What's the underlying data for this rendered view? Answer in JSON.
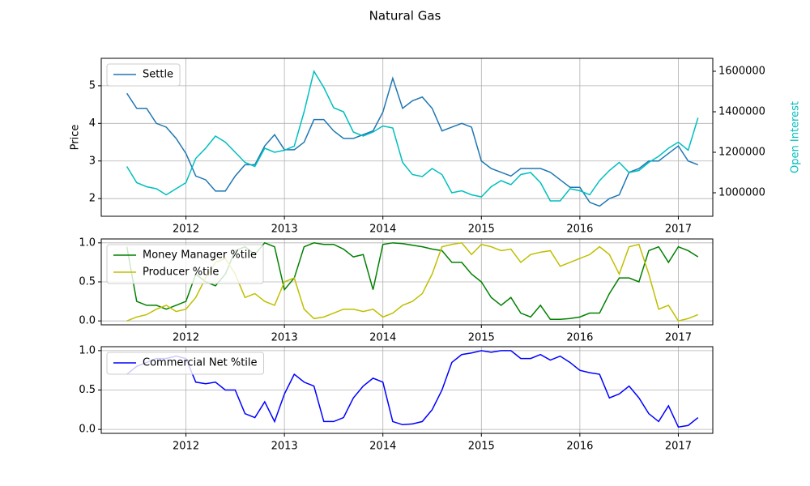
{
  "title": "Natural Gas",
  "chart_data": [
    {
      "type": "line",
      "ylabel": "Price",
      "y2label": "Open Interest",
      "grid": true,
      "legend": "upper left",
      "x": [
        2011.4,
        2011.5,
        2011.6,
        2011.7,
        2011.8,
        2011.9,
        2012.0,
        2012.1,
        2012.2,
        2012.3,
        2012.4,
        2012.5,
        2012.6,
        2012.7,
        2012.8,
        2012.9,
        2013.0,
        2013.1,
        2013.2,
        2013.3,
        2013.4,
        2013.5,
        2013.6,
        2013.7,
        2013.8,
        2013.9,
        2014.0,
        2014.1,
        2014.2,
        2014.3,
        2014.4,
        2014.5,
        2014.6,
        2014.7,
        2014.8,
        2014.9,
        2015.0,
        2015.1,
        2015.2,
        2015.3,
        2015.4,
        2015.5,
        2015.6,
        2015.7,
        2015.8,
        2015.9,
        2016.0,
        2016.1,
        2016.2,
        2016.3,
        2016.4,
        2016.5,
        2016.6,
        2016.7,
        2016.8,
        2016.9,
        2017.0,
        2017.1,
        2017.2
      ],
      "xlim": [
        2011.14,
        2017.35
      ],
      "xticks": [
        2012,
        2013,
        2014,
        2015,
        2016,
        2017
      ],
      "ylim": [
        1.53,
        5.73
      ],
      "yticks": [
        2,
        3,
        4,
        5
      ],
      "y2lim": [
        884000,
        1664000
      ],
      "y2ticks": [
        1000000,
        1200000,
        1400000,
        1600000
      ],
      "series": [
        {
          "name": "Settle",
          "color": "#1f77b4",
          "values": [
            4.8,
            4.4,
            4.4,
            4.0,
            3.9,
            3.6,
            3.2,
            2.6,
            2.5,
            2.2,
            2.2,
            2.6,
            2.9,
            2.9,
            3.4,
            3.7,
            3.3,
            3.3,
            3.5,
            4.1,
            4.1,
            3.8,
            3.6,
            3.6,
            3.7,
            3.8,
            4.3,
            5.2,
            4.4,
            4.6,
            4.7,
            4.4,
            3.8,
            3.9,
            4.0,
            3.9,
            3.0,
            2.8,
            2.7,
            2.6,
            2.8,
            2.8,
            2.8,
            2.7,
            2.5,
            2.3,
            2.3,
            1.9,
            1.8,
            2.0,
            2.1,
            2.7,
            2.8,
            3.0,
            3.0,
            3.2,
            3.4,
            3.0,
            2.9
          ]
        },
        {
          "axis": "y2",
          "color": "#00bfbf",
          "values": [
            1130000,
            1050000,
            1030000,
            1020000,
            990000,
            1020000,
            1050000,
            1170000,
            1220000,
            1280000,
            1250000,
            1200000,
            1150000,
            1130000,
            1220000,
            1200000,
            1210000,
            1230000,
            1400000,
            1600000,
            1520000,
            1420000,
            1400000,
            1300000,
            1280000,
            1300000,
            1330000,
            1320000,
            1150000,
            1090000,
            1080000,
            1120000,
            1090000,
            1000000,
            1010000,
            990000,
            980000,
            1030000,
            1060000,
            1040000,
            1090000,
            1100000,
            1050000,
            960000,
            960000,
            1020000,
            1010000,
            990000,
            1060000,
            1110000,
            1150000,
            1100000,
            1110000,
            1150000,
            1180000,
            1220000,
            1250000,
            1210000,
            1370000
          ]
        }
      ]
    },
    {
      "type": "line",
      "grid": true,
      "legend": "upper left",
      "x": [
        2011.4,
        2011.5,
        2011.6,
        2011.7,
        2011.8,
        2011.9,
        2012.0,
        2012.1,
        2012.2,
        2012.3,
        2012.4,
        2012.5,
        2012.6,
        2012.7,
        2012.8,
        2012.9,
        2013.0,
        2013.1,
        2013.2,
        2013.3,
        2013.4,
        2013.5,
        2013.6,
        2013.7,
        2013.8,
        2013.9,
        2014.0,
        2014.1,
        2014.2,
        2014.3,
        2014.4,
        2014.5,
        2014.6,
        2014.7,
        2014.8,
        2014.9,
        2015.0,
        2015.1,
        2015.2,
        2015.3,
        2015.4,
        2015.5,
        2015.6,
        2015.7,
        2015.8,
        2015.9,
        2016.0,
        2016.1,
        2016.2,
        2016.3,
        2016.4,
        2016.5,
        2016.6,
        2016.7,
        2016.8,
        2016.9,
        2017.0,
        2017.1,
        2017.2
      ],
      "xlim": [
        2011.14,
        2017.35
      ],
      "xticks": [
        2012,
        2013,
        2014,
        2015,
        2016,
        2017
      ],
      "ylim": [
        -0.05,
        1.05
      ],
      "yticks": [
        {
          "value": 0,
          "label": "0.0"
        },
        {
          "value": 0.5,
          "label": "0.5"
        },
        {
          "value": 1,
          "label": "1.0"
        }
      ],
      "series": [
        {
          "name": "Money Manager %tile",
          "color": "#008000",
          "values": [
            0.95,
            0.25,
            0.2,
            0.2,
            0.15,
            0.2,
            0.25,
            0.6,
            0.5,
            0.45,
            0.6,
            0.9,
            0.95,
            0.85,
            1.0,
            0.95,
            0.4,
            0.55,
            0.95,
            1.0,
            0.98,
            0.98,
            0.92,
            0.82,
            0.85,
            0.4,
            0.98,
            1.0,
            0.99,
            0.97,
            0.95,
            0.92,
            0.9,
            0.75,
            0.75,
            0.6,
            0.5,
            0.3,
            0.2,
            0.3,
            0.1,
            0.05,
            0.2,
            0.02,
            0.02,
            0.03,
            0.05,
            0.1,
            0.1,
            0.35,
            0.55,
            0.55,
            0.5,
            0.9,
            0.95,
            0.75,
            0.95,
            0.9,
            0.82
          ]
        },
        {
          "name": "Producer %tile",
          "color": "#bfbf00",
          "values": [
            0.0,
            0.05,
            0.08,
            0.15,
            0.2,
            0.12,
            0.15,
            0.3,
            0.55,
            0.75,
            0.8,
            0.6,
            0.3,
            0.35,
            0.25,
            0.2,
            0.5,
            0.55,
            0.15,
            0.03,
            0.05,
            0.1,
            0.15,
            0.15,
            0.12,
            0.15,
            0.05,
            0.1,
            0.2,
            0.25,
            0.35,
            0.6,
            0.95,
            0.98,
            1.0,
            0.85,
            0.98,
            0.95,
            0.9,
            0.92,
            0.75,
            0.85,
            0.88,
            0.9,
            0.7,
            0.75,
            0.8,
            0.85,
            0.95,
            0.85,
            0.6,
            0.95,
            0.98,
            0.6,
            0.15,
            0.2,
            0.0,
            0.03,
            0.08
          ]
        }
      ]
    },
    {
      "type": "line",
      "grid": true,
      "legend": "upper left",
      "x": [
        2011.4,
        2011.5,
        2011.6,
        2011.7,
        2011.8,
        2011.9,
        2012.0,
        2012.1,
        2012.2,
        2012.3,
        2012.4,
        2012.5,
        2012.6,
        2012.7,
        2012.8,
        2012.9,
        2013.0,
        2013.1,
        2013.2,
        2013.3,
        2013.4,
        2013.5,
        2013.6,
        2013.7,
        2013.8,
        2013.9,
        2014.0,
        2014.1,
        2014.2,
        2014.3,
        2014.4,
        2014.5,
        2014.6,
        2014.7,
        2014.8,
        2014.9,
        2015.0,
        2015.1,
        2015.2,
        2015.3,
        2015.4,
        2015.5,
        2015.6,
        2015.7,
        2015.8,
        2015.9,
        2016.0,
        2016.1,
        2016.2,
        2016.3,
        2016.4,
        2016.5,
        2016.6,
        2016.7,
        2016.8,
        2016.9,
        2017.0,
        2017.1,
        2017.2
      ],
      "xlim": [
        2011.14,
        2017.35
      ],
      "xticks": [
        2012,
        2013,
        2014,
        2015,
        2016,
        2017
      ],
      "ylim": [
        -0.05,
        1.05
      ],
      "yticks": [
        {
          "value": 0,
          "label": "0.0"
        },
        {
          "value": 0.5,
          "label": "0.5"
        },
        {
          "value": 1,
          "label": "1.0"
        }
      ],
      "series": [
        {
          "name": "Commercial Net %tile",
          "color": "#0000ff",
          "values": [
            0.7,
            0.8,
            0.85,
            0.9,
            0.9,
            0.93,
            0.9,
            0.6,
            0.58,
            0.6,
            0.5,
            0.5,
            0.2,
            0.15,
            0.35,
            0.1,
            0.45,
            0.7,
            0.6,
            0.55,
            0.1,
            0.1,
            0.15,
            0.4,
            0.55,
            0.65,
            0.6,
            0.1,
            0.06,
            0.07,
            0.1,
            0.25,
            0.5,
            0.85,
            0.95,
            0.97,
            1.0,
            0.98,
            1.0,
            1.0,
            0.9,
            0.9,
            0.95,
            0.88,
            0.93,
            0.85,
            0.75,
            0.72,
            0.7,
            0.4,
            0.45,
            0.55,
            0.4,
            0.2,
            0.1,
            0.3,
            0.03,
            0.05,
            0.15
          ]
        }
      ]
    }
  ]
}
